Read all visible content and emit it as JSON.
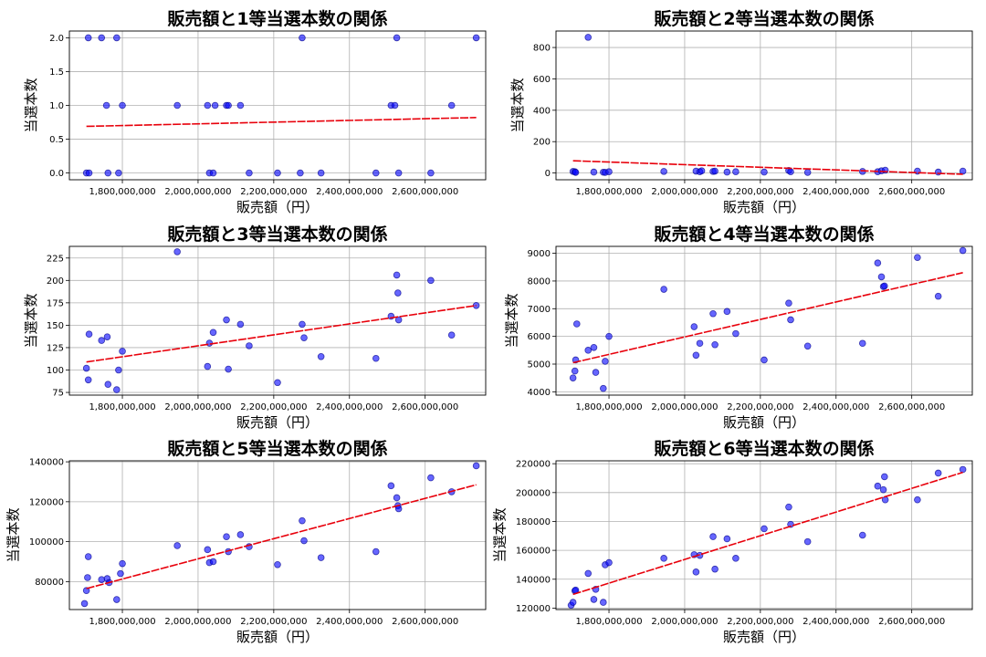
{
  "figure": {
    "background": "#ffffff"
  },
  "style": {
    "point_color": "#0000ff",
    "point_edge": "#00008b",
    "trend_color": "#e8000b",
    "grid_color": "#b0b0b0"
  },
  "chart_data": [
    {
      "type": "scatter",
      "title": "販売額と1等当選本数の関係",
      "xlabel": "販売額（円）",
      "ylabel": "当選本数",
      "grid": true,
      "xlim": [
        1660000000,
        2760000000
      ],
      "ylim": [
        -0.1,
        2.1
      ],
      "xticks": [
        1800000000,
        2000000000,
        2200000000,
        2400000000,
        2600000000
      ],
      "xtick_labels": [
        "1,800,000,000",
        "2,000,000,000",
        "2,200,000,000",
        "2,400,000,000",
        "2,600,000,000"
      ],
      "yticks": [
        0,
        0.5,
        1,
        1.5,
        2
      ],
      "ytick_labels": [
        "0.0",
        "0.5",
        "1.0",
        "1.5",
        "2.0"
      ],
      "points": [
        [
          1705000000,
          0
        ],
        [
          1712000000,
          0
        ],
        [
          1710000000,
          2
        ],
        [
          1745000000,
          2
        ],
        [
          1758000000,
          1
        ],
        [
          1762000000,
          0
        ],
        [
          1785000000,
          2
        ],
        [
          1790000000,
          0
        ],
        [
          1800000000,
          1
        ],
        [
          1945000000,
          1
        ],
        [
          2025000000,
          1
        ],
        [
          2030000000,
          0
        ],
        [
          2040000000,
          0
        ],
        [
          2045000000,
          1
        ],
        [
          2075000000,
          1
        ],
        [
          2080000000,
          1
        ],
        [
          2112000000,
          1
        ],
        [
          2135000000,
          0
        ],
        [
          2210000000,
          0
        ],
        [
          2270000000,
          0
        ],
        [
          2275000000,
          2
        ],
        [
          2325000000,
          0
        ],
        [
          2470000000,
          0
        ],
        [
          2510000000,
          1
        ],
        [
          2520000000,
          1
        ],
        [
          2525000000,
          2
        ],
        [
          2530000000,
          0
        ],
        [
          2615000000,
          0
        ],
        [
          2670000000,
          1
        ],
        [
          2735000000,
          2
        ]
      ],
      "trend": [
        [
          1705000000,
          0.69
        ],
        [
          2735000000,
          0.82
        ]
      ]
    },
    {
      "type": "scatter",
      "title": "販売額と2等当選本数の関係",
      "xlabel": "販売額（円）",
      "ylabel": "当選本数",
      "grid": true,
      "xlim": [
        1660000000,
        2760000000
      ],
      "ylim": [
        -43,
        905
      ],
      "xticks": [
        1800000000,
        2000000000,
        2200000000,
        2400000000,
        2600000000
      ],
      "xtick_labels": [
        "1,800,000,000",
        "2,000,000,000",
        "2,200,000,000",
        "2,400,000,000",
        "2,600,000,000"
      ],
      "yticks": [
        0,
        200,
        400,
        600,
        800
      ],
      "ytick_labels": [
        "0",
        "200",
        "400",
        "600",
        "800"
      ],
      "points": [
        [
          1705000000,
          10
        ],
        [
          1710000000,
          8
        ],
        [
          1712000000,
          4
        ],
        [
          1745000000,
          865
        ],
        [
          1760000000,
          6
        ],
        [
          1785000000,
          5
        ],
        [
          1790000000,
          4
        ],
        [
          1800000000,
          8
        ],
        [
          1945000000,
          10
        ],
        [
          2030000000,
          12
        ],
        [
          2040000000,
          8
        ],
        [
          2045000000,
          14
        ],
        [
          2075000000,
          10
        ],
        [
          2080000000,
          12
        ],
        [
          2112000000,
          6
        ],
        [
          2135000000,
          8
        ],
        [
          2210000000,
          6
        ],
        [
          2275000000,
          16
        ],
        [
          2280000000,
          8
        ],
        [
          2325000000,
          4
        ],
        [
          2470000000,
          10
        ],
        [
          2510000000,
          8
        ],
        [
          2520000000,
          14
        ],
        [
          2530000000,
          18
        ],
        [
          2615000000,
          12
        ],
        [
          2670000000,
          6
        ],
        [
          2735000000,
          12
        ]
      ],
      "trend": [
        [
          1705000000,
          78
        ],
        [
          2735000000,
          -8
        ]
      ]
    },
    {
      "type": "scatter",
      "title": "販売額と3等当選本数の関係",
      "xlabel": "販売額（円）",
      "ylabel": "当選本数",
      "grid": true,
      "xlim": [
        1660000000,
        2760000000
      ],
      "ylim": [
        72,
        238
      ],
      "xticks": [
        1800000000,
        2000000000,
        2200000000,
        2400000000,
        2600000000
      ],
      "xtick_labels": [
        "1,800,000,000",
        "2,000,000,000",
        "2,200,000,000",
        "2,400,000,000",
        "2,600,000,000"
      ],
      "yticks": [
        75,
        100,
        125,
        150,
        175,
        200,
        225
      ],
      "ytick_labels": [
        "75",
        "100",
        "125",
        "150",
        "175",
        "200",
        "225"
      ],
      "points": [
        [
          1705000000,
          102
        ],
        [
          1710000000,
          89
        ],
        [
          1712000000,
          140
        ],
        [
          1745000000,
          133
        ],
        [
          1760000000,
          137
        ],
        [
          1762000000,
          84
        ],
        [
          1785000000,
          78
        ],
        [
          1790000000,
          100
        ],
        [
          1800000000,
          121
        ],
        [
          1945000000,
          232
        ],
        [
          2025000000,
          104
        ],
        [
          2030000000,
          130
        ],
        [
          2040000000,
          142
        ],
        [
          2075000000,
          156
        ],
        [
          2080000000,
          101
        ],
        [
          2112000000,
          151
        ],
        [
          2135000000,
          127
        ],
        [
          2210000000,
          86
        ],
        [
          2275000000,
          151
        ],
        [
          2280000000,
          136
        ],
        [
          2325000000,
          115
        ],
        [
          2470000000,
          113
        ],
        [
          2510000000,
          160
        ],
        [
          2525000000,
          206
        ],
        [
          2528000000,
          186
        ],
        [
          2530000000,
          156
        ],
        [
          2615000000,
          200
        ],
        [
          2670000000,
          139
        ],
        [
          2735000000,
          172
        ]
      ],
      "trend": [
        [
          1705000000,
          109
        ],
        [
          2735000000,
          172
        ]
      ]
    },
    {
      "type": "scatter",
      "title": "販売額と4等当選本数の関係",
      "xlabel": "販売額（円）",
      "ylabel": "当選本数",
      "grid": true,
      "xlim": [
        1660000000,
        2760000000
      ],
      "ylim": [
        3880,
        9250
      ],
      "xticks": [
        1800000000,
        2000000000,
        2200000000,
        2400000000,
        2600000000
      ],
      "xtick_labels": [
        "1,800,000,000",
        "2,000,000,000",
        "2,200,000,000",
        "2,400,000,000",
        "2,600,000,000"
      ],
      "yticks": [
        4000,
        5000,
        6000,
        7000,
        8000,
        9000
      ],
      "ytick_labels": [
        "4000",
        "5000",
        "6000",
        "7000",
        "8000",
        "9000"
      ],
      "points": [
        [
          1705000000,
          4500
        ],
        [
          1710000000,
          4750
        ],
        [
          1712000000,
          5150
        ],
        [
          1715000000,
          6450
        ],
        [
          1745000000,
          5500
        ],
        [
          1760000000,
          5600
        ],
        [
          1765000000,
          4700
        ],
        [
          1785000000,
          4120
        ],
        [
          1790000000,
          5100
        ],
        [
          1800000000,
          6000
        ],
        [
          1945000000,
          7700
        ],
        [
          2025000000,
          6350
        ],
        [
          2030000000,
          5320
        ],
        [
          2040000000,
          5750
        ],
        [
          2075000000,
          6820
        ],
        [
          2080000000,
          5700
        ],
        [
          2112000000,
          6900
        ],
        [
          2135000000,
          6100
        ],
        [
          2210000000,
          5150
        ],
        [
          2275000000,
          7200
        ],
        [
          2280000000,
          6600
        ],
        [
          2325000000,
          5650
        ],
        [
          2470000000,
          5750
        ],
        [
          2510000000,
          8650
        ],
        [
          2520000000,
          8150
        ],
        [
          2525000000,
          7800
        ],
        [
          2528000000,
          7820
        ],
        [
          2615000000,
          8850
        ],
        [
          2670000000,
          7450
        ],
        [
          2735000000,
          9100
        ]
      ],
      "trend": [
        [
          1705000000,
          5050
        ],
        [
          2735000000,
          8300
        ]
      ]
    },
    {
      "type": "scatter",
      "title": "販売額と5等当選本数の関係",
      "xlabel": "販売額（円）",
      "ylabel": "当選本数",
      "grid": true,
      "xlim": [
        1660000000,
        2760000000
      ],
      "ylim": [
        66000,
        140500
      ],
      "xticks": [
        1800000000,
        2000000000,
        2200000000,
        2400000000,
        2600000000
      ],
      "xtick_labels": [
        "1,800,000,000",
        "2,000,000,000",
        "2,200,000,000",
        "2,400,000,000",
        "2,600,000,000"
      ],
      "yticks": [
        80000,
        100000,
        120000,
        140000
      ],
      "ytick_labels": [
        "80000",
        "100000",
        "120000",
        "140000"
      ],
      "points": [
        [
          1700000000,
          69000
        ],
        [
          1705000000,
          75500
        ],
        [
          1708000000,
          82000
        ],
        [
          1710000000,
          92500
        ],
        [
          1745000000,
          81000
        ],
        [
          1760000000,
          81500
        ],
        [
          1765000000,
          79500
        ],
        [
          1785000000,
          71000
        ],
        [
          1795000000,
          84000
        ],
        [
          1800000000,
          89000
        ],
        [
          1945000000,
          98000
        ],
        [
          2025000000,
          96000
        ],
        [
          2030000000,
          89500
        ],
        [
          2040000000,
          90000
        ],
        [
          2075000000,
          102500
        ],
        [
          2080000000,
          95000
        ],
        [
          2112000000,
          103500
        ],
        [
          2135000000,
          97500
        ],
        [
          2210000000,
          88500
        ],
        [
          2275000000,
          110500
        ],
        [
          2280000000,
          100500
        ],
        [
          2325000000,
          92000
        ],
        [
          2470000000,
          95000
        ],
        [
          2510000000,
          128000
        ],
        [
          2525000000,
          122000
        ],
        [
          2528000000,
          118000
        ],
        [
          2530000000,
          116500
        ],
        [
          2615000000,
          132000
        ],
        [
          2670000000,
          125000
        ],
        [
          2735000000,
          138000
        ]
      ],
      "trend": [
        [
          1705000000,
          76500
        ],
        [
          2735000000,
          128500
        ]
      ]
    },
    {
      "type": "scatter",
      "title": "販売額と6等当選本数の関係",
      "xlabel": "販売額（円）",
      "ylabel": "当選本数",
      "grid": true,
      "xlim": [
        1660000000,
        2760000000
      ],
      "ylim": [
        119000,
        222000
      ],
      "xticks": [
        1800000000,
        2000000000,
        2200000000,
        2400000000,
        2600000000
      ],
      "xtick_labels": [
        "1,800,000,000",
        "2,000,000,000",
        "2,200,000,000",
        "2,400,000,000",
        "2,600,000,000"
      ],
      "yticks": [
        120000,
        140000,
        160000,
        180000,
        200000,
        220000
      ],
      "ytick_labels": [
        "120000",
        "140000",
        "160000",
        "180000",
        "200000",
        "220000"
      ],
      "points": [
        [
          1700000000,
          122000
        ],
        [
          1705000000,
          124000
        ],
        [
          1710000000,
          132000
        ],
        [
          1712000000,
          132500
        ],
        [
          1745000000,
          144000
        ],
        [
          1760000000,
          126000
        ],
        [
          1765000000,
          133000
        ],
        [
          1785000000,
          124000
        ],
        [
          1790000000,
          150000
        ],
        [
          1800000000,
          151500
        ],
        [
          1945000000,
          154500
        ],
        [
          2025000000,
          157000
        ],
        [
          2030000000,
          145000
        ],
        [
          2040000000,
          156500
        ],
        [
          2075000000,
          169500
        ],
        [
          2080000000,
          147000
        ],
        [
          2112000000,
          168000
        ],
        [
          2135000000,
          154500
        ],
        [
          2210000000,
          175000
        ],
        [
          2275000000,
          190000
        ],
        [
          2280000000,
          178000
        ],
        [
          2325000000,
          166000
        ],
        [
          2470000000,
          170500
        ],
        [
          2510000000,
          204500
        ],
        [
          2525000000,
          202000
        ],
        [
          2528000000,
          211000
        ],
        [
          2530000000,
          195000
        ],
        [
          2615000000,
          195000
        ],
        [
          2670000000,
          213500
        ],
        [
          2735000000,
          216000
        ]
      ],
      "trend": [
        [
          1705000000,
          129500
        ],
        [
          2735000000,
          214000
        ]
      ]
    }
  ]
}
